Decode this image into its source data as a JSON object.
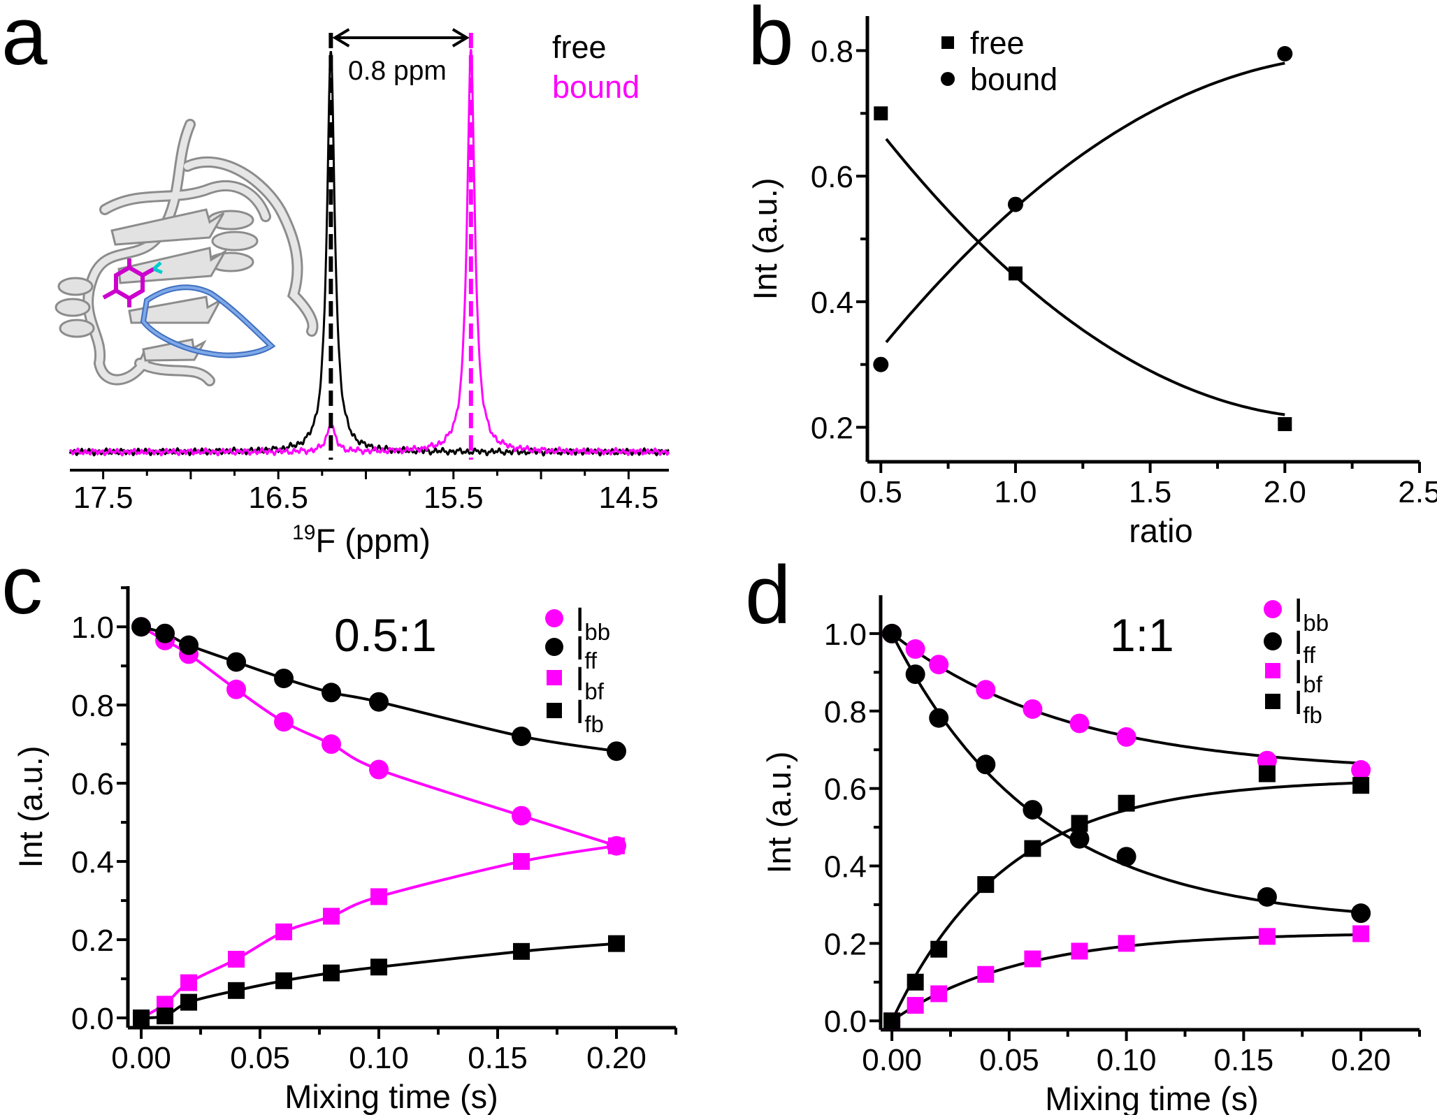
{
  "panel_labels": [
    "a",
    "b",
    "c",
    "d"
  ],
  "chart_data": [
    {
      "panel": "a",
      "type": "line",
      "xlabel": {
        "sup": "19",
        "text": "F (ppm)"
      },
      "xlim": [
        17.69,
        14.27
      ],
      "x_reversed": true,
      "x_ticks": [
        {
          "v": 17.5,
          "label": "17.5"
        },
        {
          "v": 16.5,
          "label": "16.5"
        },
        {
          "v": 15.5,
          "label": "15.5"
        },
        {
          "v": 14.5,
          "label": "14.5"
        }
      ],
      "series": [
        {
          "name": "free",
          "color": "#000000",
          "peaks": [
            {
              "ppm": 16.2,
              "rel_intensity": 1.0
            }
          ]
        },
        {
          "name": "bound",
          "color": "#ff00ff",
          "peaks": [
            {
              "ppm": 15.4,
              "rel_intensity": 1.0
            },
            {
              "ppm": 16.2,
              "rel_intensity": 0.07
            }
          ]
        }
      ],
      "annotation": {
        "text": "0.8 ppm",
        "from_ppm": 16.2,
        "to_ppm": 15.4
      },
      "legend": {
        "placement": "top-right"
      }
    },
    {
      "panel": "b",
      "type": "scatter",
      "xlabel": "ratio",
      "ylabel": "Int (a.u.)",
      "xlim": [
        0.45,
        2.5
      ],
      "ylim": [
        0.145,
        0.855
      ],
      "x_ticks": [
        {
          "v": 0.5,
          "label": "0.5"
        },
        {
          "v": 1.0,
          "label": "1.0"
        },
        {
          "v": 1.5,
          "label": "1.5"
        },
        {
          "v": 2.0,
          "label": "2.0"
        },
        {
          "v": 2.5,
          "label": "2.5"
        }
      ],
      "y_ticks": [
        {
          "v": 0.2,
          "label": "0.2"
        },
        {
          "v": 0.4,
          "label": "0.4"
        },
        {
          "v": 0.6,
          "label": "0.6"
        },
        {
          "v": 0.8,
          "label": "0.8"
        }
      ],
      "series": [
        {
          "name": "free",
          "marker": "square",
          "color": "#000000",
          "x": [
            0.5,
            1.0,
            2.0
          ],
          "y": [
            0.7,
            0.445,
            0.205
          ]
        },
        {
          "name": "bound",
          "marker": "circle",
          "color": "#000000",
          "x": [
            0.5,
            1.0,
            2.0
          ],
          "y": [
            0.3,
            0.555,
            0.795
          ]
        }
      ],
      "fit_lines": true,
      "legend": {
        "placement": "top-left"
      }
    },
    {
      "panel": "c",
      "type": "scatter",
      "title": "0.5:1",
      "xlabel": "Mixing time (s)",
      "ylabel": "Int (a.u.)",
      "xlim": [
        -0.0056,
        0.225
      ],
      "ylim": [
        -0.025,
        1.104
      ],
      "x_ticks": [
        {
          "v": 0.0,
          "label": "0.00"
        },
        {
          "v": 0.05,
          "label": "0.05"
        },
        {
          "v": 0.1,
          "label": "0.10"
        },
        {
          "v": 0.15,
          "label": "0.15"
        },
        {
          "v": 0.2,
          "label": "0.20"
        }
      ],
      "y_ticks": [
        {
          "v": 0.0,
          "label": "0.0"
        },
        {
          "v": 0.2,
          "label": "0.2"
        },
        {
          "v": 0.4,
          "label": "0.4"
        },
        {
          "v": 0.6,
          "label": "0.6"
        },
        {
          "v": 0.8,
          "label": "0.8"
        },
        {
          "v": 1.0,
          "label": "1.0"
        }
      ],
      "x": [
        0,
        0.01,
        0.02,
        0.04,
        0.06,
        0.08,
        0.1,
        0.16,
        0.2
      ],
      "series": [
        {
          "name": "I",
          "sub": "bb",
          "marker": "circle",
          "color": "#ff00ff",
          "line_color": "#ff00ff",
          "values": [
            1.0,
            0.965,
            0.93,
            0.84,
            0.757,
            0.7,
            0.635,
            0.517,
            0.44
          ]
        },
        {
          "name": "I",
          "sub": "ff",
          "marker": "circle",
          "color": "#000000",
          "line_color": "#000000",
          "values": [
            1.0,
            0.983,
            0.953,
            0.91,
            0.868,
            0.832,
            0.808,
            0.72,
            0.682
          ]
        },
        {
          "name": "I",
          "sub": "bf",
          "marker": "square",
          "color": "#ff00ff",
          "line_color": "#ff00ff",
          "values": [
            0.0,
            0.035,
            0.09,
            0.15,
            0.22,
            0.26,
            0.31,
            0.4,
            0.44
          ]
        },
        {
          "name": "I",
          "sub": "fb",
          "marker": "square",
          "color": "#000000",
          "line_color": "#000000",
          "values": [
            0.0,
            0.005,
            0.04,
            0.07,
            0.095,
            0.115,
            0.13,
            0.17,
            0.19
          ]
        }
      ],
      "legend": {
        "placement": "top-right"
      }
    },
    {
      "panel": "d",
      "type": "scatter",
      "title": "1:1",
      "xlabel": "Mixing time (s)",
      "ylabel": "Int (a.u.)",
      "xlim": [
        -0.0048,
        0.225
      ],
      "ylim": [
        -0.023,
        1.099
      ],
      "x_ticks": [
        {
          "v": 0.0,
          "label": "0.00"
        },
        {
          "v": 0.05,
          "label": "0.05"
        },
        {
          "v": 0.1,
          "label": "0.10"
        },
        {
          "v": 0.15,
          "label": "0.15"
        },
        {
          "v": 0.2,
          "label": "0.20"
        }
      ],
      "y_ticks": [
        {
          "v": 0.0,
          "label": "0.0"
        },
        {
          "v": 0.2,
          "label": "0.2"
        },
        {
          "v": 0.4,
          "label": "0.4"
        },
        {
          "v": 0.6,
          "label": "0.6"
        },
        {
          "v": 0.8,
          "label": "0.8"
        },
        {
          "v": 1.0,
          "label": "1.0"
        }
      ],
      "x": [
        0,
        0.01,
        0.02,
        0.04,
        0.06,
        0.08,
        0.1,
        0.16,
        0.2
      ],
      "series": [
        {
          "name": "I",
          "sub": "bb",
          "marker": "circle",
          "color": "#ff00ff",
          "line_color": "#000000",
          "values": [
            1.0,
            0.96,
            0.92,
            0.855,
            0.805,
            0.768,
            0.733,
            0.672,
            0.648
          ]
        },
        {
          "name": "I",
          "sub": "ff",
          "marker": "circle",
          "color": "#000000",
          "line_color": "#000000",
          "values": [
            1.0,
            0.895,
            0.782,
            0.662,
            0.545,
            0.47,
            0.424,
            0.32,
            0.278
          ]
        },
        {
          "name": "I",
          "sub": "bf",
          "marker": "square",
          "color": "#ff00ff",
          "line_color": "#000000",
          "values": [
            0.0,
            0.04,
            0.07,
            0.12,
            0.16,
            0.18,
            0.2,
            0.218,
            0.225
          ]
        },
        {
          "name": "I",
          "sub": "fb",
          "marker": "square",
          "color": "#000000",
          "line_color": "#000000",
          "values": [
            0.0,
            0.1,
            0.185,
            0.352,
            0.445,
            0.51,
            0.562,
            0.638,
            0.608
          ]
        }
      ],
      "legend": {
        "placement": "top-right"
      }
    }
  ]
}
